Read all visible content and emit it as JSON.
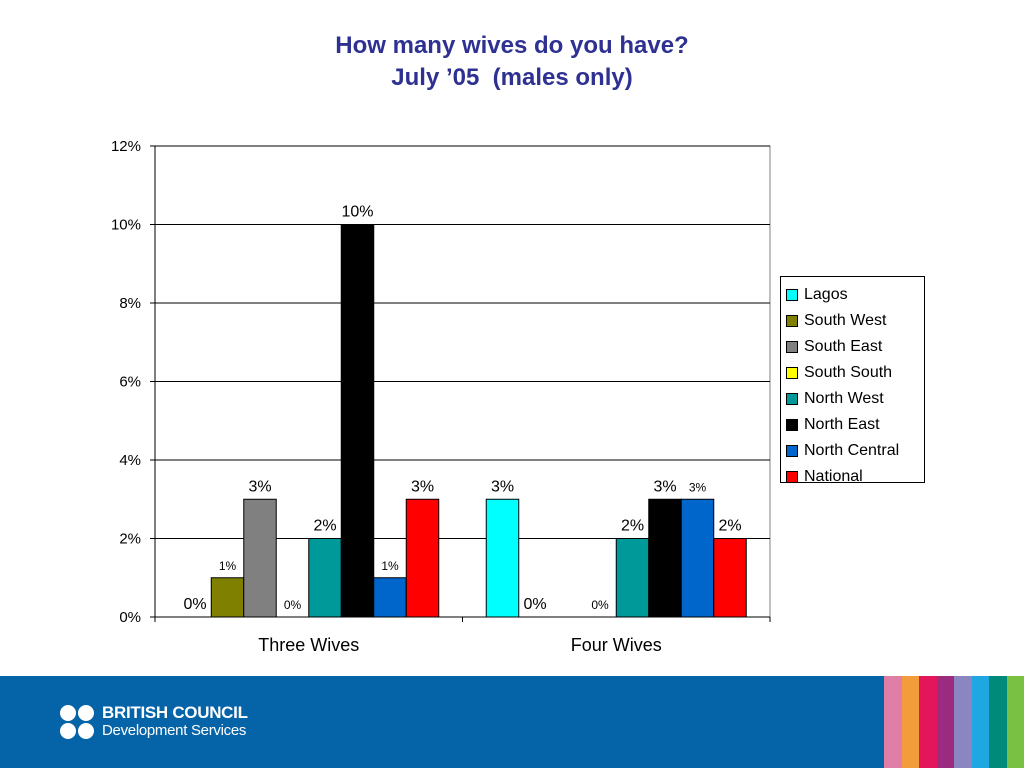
{
  "title": {
    "line1": "How many wives do you have?",
    "line2": "July ’05  (males only)"
  },
  "chart_data": {
    "type": "bar",
    "categories": [
      "Three Wives",
      "Four Wives"
    ],
    "ylim": [
      0,
      12
    ],
    "yticks": [
      0,
      2,
      4,
      6,
      8,
      10,
      12
    ],
    "ytick_labels": [
      "0%",
      "2%",
      "4%",
      "6%",
      "8%",
      "10%",
      "12%"
    ],
    "grid": true,
    "legend_position": "right",
    "series": [
      {
        "name": "Lagos",
        "color": "#00ffff",
        "values": [
          0,
          3
        ],
        "labels": [
          "0%",
          "3%"
        ]
      },
      {
        "name": "South West",
        "color": "#808000",
        "values": [
          1,
          0
        ],
        "labels": [
          "1%",
          "0%"
        ]
      },
      {
        "name": "South East",
        "color": "#808080",
        "values": [
          3,
          0
        ],
        "labels": [
          "3%",
          "0%"
        ]
      },
      {
        "name": "South South",
        "color": "#ffff00",
        "values": [
          0,
          0
        ],
        "labels": [
          "0%",
          "0%"
        ]
      },
      {
        "name": "North West",
        "color": "#009999",
        "values": [
          2,
          2
        ],
        "labels": [
          "2%",
          "2%"
        ]
      },
      {
        "name": "North East",
        "color": "#000000",
        "values": [
          10,
          3
        ],
        "labels": [
          "10%",
          "3%"
        ]
      },
      {
        "name": "North Central",
        "color": "#0066cc",
        "values": [
          1,
          3
        ],
        "labels": [
          "1%",
          "3%"
        ]
      },
      {
        "name": "National",
        "color": "#ff0000",
        "values": [
          3,
          2
        ],
        "labels": [
          "3%",
          "2%"
        ]
      }
    ]
  },
  "footer": {
    "brand_name": "BRITISH COUNCIL",
    "brand_sub": "Development Services",
    "background_color": "#0563a8",
    "stripe_colors": [
      "#e07fa6",
      "#f39c3c",
      "#e3165b",
      "#9a2b7e",
      "#8b86c2",
      "#1ea7e1",
      "#008a7a",
      "#79c143"
    ]
  }
}
